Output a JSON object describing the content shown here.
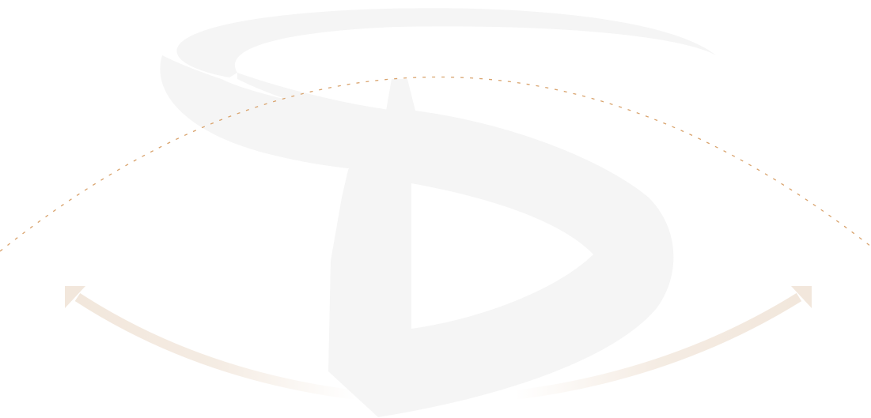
{
  "colors": {
    "background": "#ffffff",
    "logo": "#f5f5f5",
    "dotted_arc": "#d9a36d",
    "arrows": "#f2e7dc"
  },
  "icons": {
    "logo": "brush-letter-d-logo",
    "left_arrow": "curved-arrow-left-icon",
    "right_arrow": "curved-arrow-right-icon"
  }
}
